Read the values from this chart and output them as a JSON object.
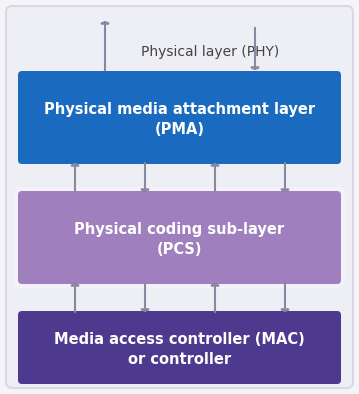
{
  "bg_outer_color": "#f5f5f8",
  "bg_inner_color": "#ebebf2",
  "outer_box_color": "#d8d8e8",
  "pma_color": "#1a6bbf",
  "pcs_color": "#a07fbe",
  "pcs_bg_color": "#f0eaf8",
  "mac_color": "#4d3a8e",
  "pma_text_line1": "Physical media attachment layer",
  "pma_text_line2": "(PMA)",
  "pcs_text_line1": "Physical coding sub-layer",
  "pcs_text_line2": "(PCS)",
  "mac_text_line1": "Media access controller (MAC)",
  "mac_text_line2": "or controller",
  "phy_label": "Physical layer (PHY)",
  "text_color_white": "#ffffff",
  "text_color_dark": "#444444",
  "arrow_color": "#8888a0",
  "figsize": [
    3.59,
    3.94
  ],
  "dpi": 100
}
